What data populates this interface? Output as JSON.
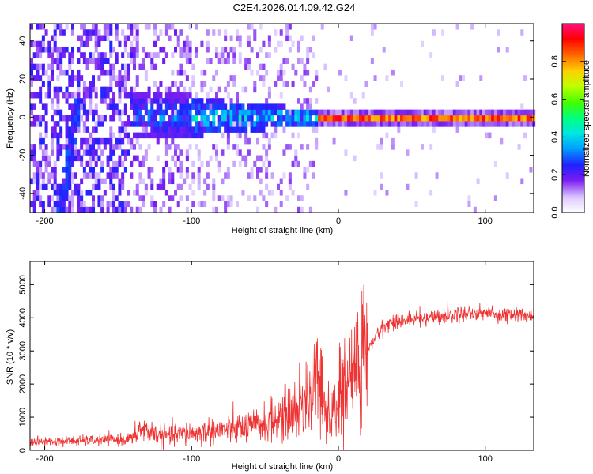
{
  "title": "C2E4.2026.014.09.42.G24",
  "chart_data": [
    {
      "type": "heatmap",
      "xlabel": "Height of straight line (km)",
      "ylabel": "Frequency (Hz)",
      "xlim": [
        -210,
        133
      ],
      "ylim": [
        -50,
        49
      ],
      "xticks": [
        -200,
        -100,
        0,
        100
      ],
      "xtick_labels": [
        "-200",
        "-100",
        "0",
        "100"
      ],
      "yticks": [
        -40,
        -20,
        0,
        20,
        40
      ],
      "ytick_labels": [
        "-40",
        "-20",
        "0",
        "20",
        "40"
      ],
      "colorbar": {
        "label": "Normalized spectral amplitude",
        "range": [
          0,
          1
        ],
        "ticks": [
          0.0,
          0.2,
          0.4,
          0.6,
          0.8
        ],
        "tick_labels": [
          "0.0",
          "0.2",
          "0.4",
          "0.6",
          "0.8"
        ]
      },
      "features": {
        "carrier_frequency_hz": 0,
        "strong_carrier_from_km": -15,
        "noise_region_until_km": -140,
        "diagonal_streak_km_range": [
          -190,
          -175
        ]
      }
    },
    {
      "type": "line",
      "xlabel": "Height of straight line (km)",
      "ylabel": "SNR (10 * v/v)",
      "xlim": [
        -210,
        133
      ],
      "ylim": [
        0,
        5700
      ],
      "xticks": [
        -200,
        -100,
        0,
        100
      ],
      "xtick_labels": [
        "-200",
        "-100",
        "0",
        "100"
      ],
      "yticks": [
        0,
        1000,
        2000,
        3000,
        4000,
        5000
      ],
      "ytick_labels": [
        "0",
        "1000",
        "2000",
        "3000",
        "4000",
        "5000"
      ],
      "series": [
        {
          "name": "SNR",
          "color": "#ee3333",
          "x": [
            -210,
            -180,
            -150,
            -140,
            -135,
            -120,
            -100,
            -80,
            -60,
            -50,
            -40,
            -30,
            -25,
            -20,
            -15,
            -10,
            -5,
            0,
            5,
            10,
            15,
            20,
            25,
            30,
            35,
            40,
            50,
            60,
            70,
            80,
            90,
            100,
            110,
            120,
            133
          ],
          "y": [
            250,
            280,
            320,
            350,
            650,
            420,
            520,
            600,
            700,
            800,
            1000,
            1200,
            1400,
            1700,
            2000,
            1500,
            800,
            1500,
            2000,
            2300,
            2600,
            3000,
            3400,
            3700,
            3850,
            3900,
            3950,
            4000,
            4050,
            4100,
            4150,
            4150,
            4100,
            4080,
            4050
          ]
        }
      ]
    }
  ]
}
